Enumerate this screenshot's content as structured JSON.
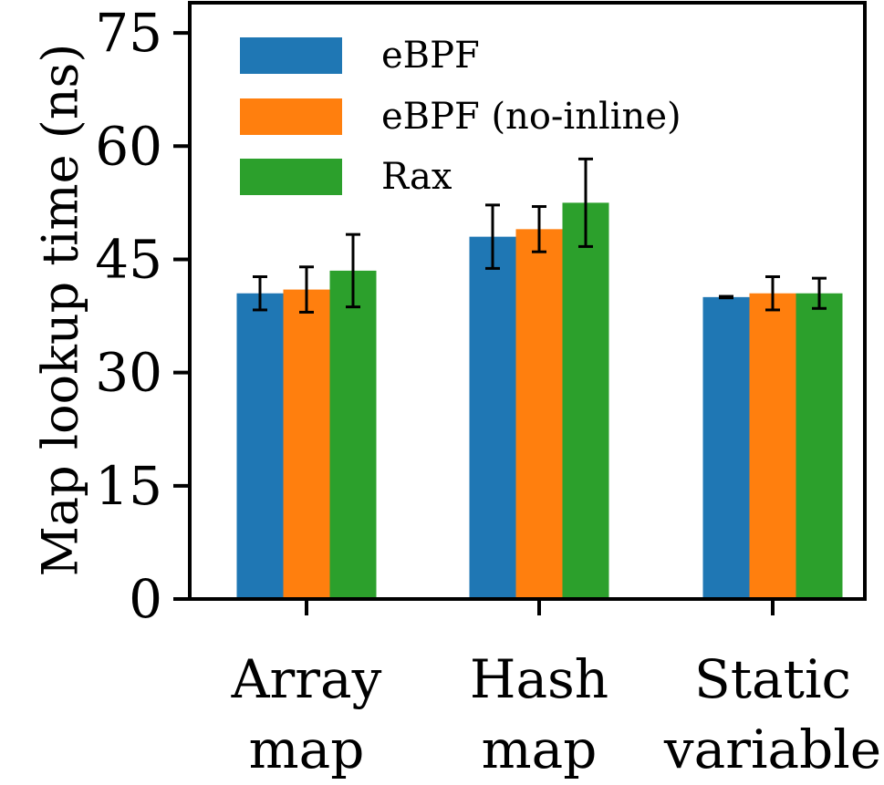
{
  "chart_data": {
    "type": "bar",
    "title": "",
    "xlabel": "",
    "ylabel": "Map lookup time (ns)",
    "ylim": [
      0,
      79
    ],
    "yticks": [
      0,
      15,
      30,
      45,
      60,
      75
    ],
    "categories": [
      {
        "line1": "Array",
        "line2": "map"
      },
      {
        "line1": "Hash",
        "line2": "map"
      },
      {
        "line1": "Static",
        "line2": "variable"
      }
    ],
    "series": [
      {
        "name": "eBPF",
        "color": "#1f77b4",
        "values": [
          40.5,
          48,
          40
        ],
        "errors": [
          2.2,
          4.2,
          0.1
        ]
      },
      {
        "name": "eBPF (no-inline)",
        "color": "#ff7f0e",
        "values": [
          41,
          49,
          40.5
        ],
        "errors": [
          3.0,
          3.0,
          2.2
        ]
      },
      {
        "name": "Rax",
        "color": "#2ca02c",
        "values": [
          43.5,
          52.5,
          40.5
        ],
        "errors": [
          4.8,
          5.8,
          2.0
        ]
      }
    ],
    "legend_position": "top-left",
    "grid": false
  }
}
